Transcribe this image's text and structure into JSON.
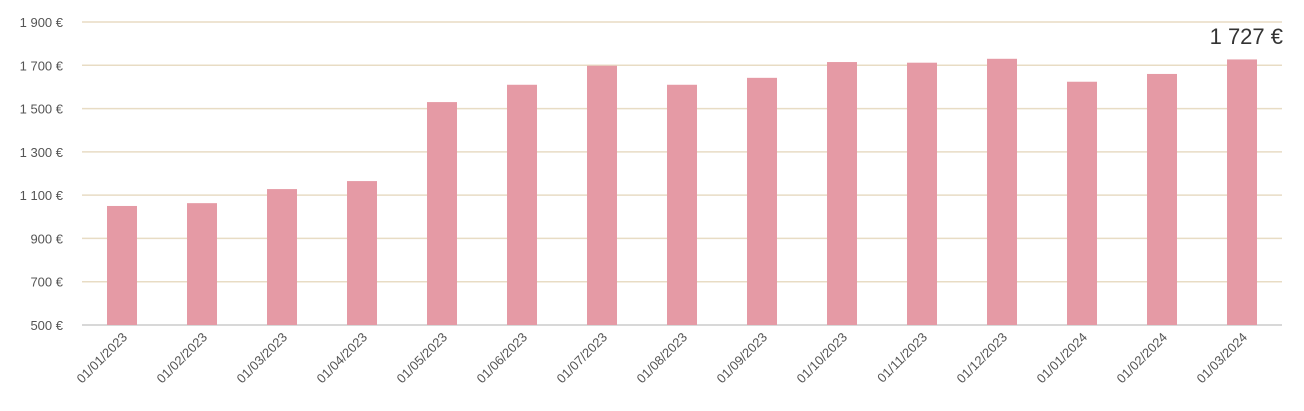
{
  "chart_data": {
    "type": "bar",
    "categories": [
      "01/01/2023",
      "01/02/2023",
      "01/03/2023",
      "01/04/2023",
      "01/05/2023",
      "01/06/2023",
      "01/07/2023",
      "01/08/2023",
      "01/09/2023",
      "01/10/2023",
      "01/11/2023",
      "01/12/2023",
      "01/01/2024",
      "01/02/2024",
      "01/03/2024"
    ],
    "values": [
      1050,
      1063,
      1128,
      1165,
      1530,
      1610,
      1698,
      1610,
      1642,
      1715,
      1712,
      1730,
      1624,
      1660,
      1727
    ],
    "title": "",
    "xlabel": "",
    "ylabel": "",
    "ylim": [
      500,
      1900
    ],
    "y_ticks": [
      500,
      700,
      900,
      1100,
      1300,
      1500,
      1700,
      1900
    ],
    "y_tick_labels": [
      "500 €",
      "700 €",
      "900 €",
      "1 100 €",
      "1 300 €",
      "1 500 €",
      "1 700 €",
      "1 900 €"
    ],
    "grid": true,
    "annotation": "1 727 €",
    "colors": {
      "bar": "#e59aa5",
      "grid": "#e8dcc4",
      "axis": "#cccccc"
    }
  }
}
